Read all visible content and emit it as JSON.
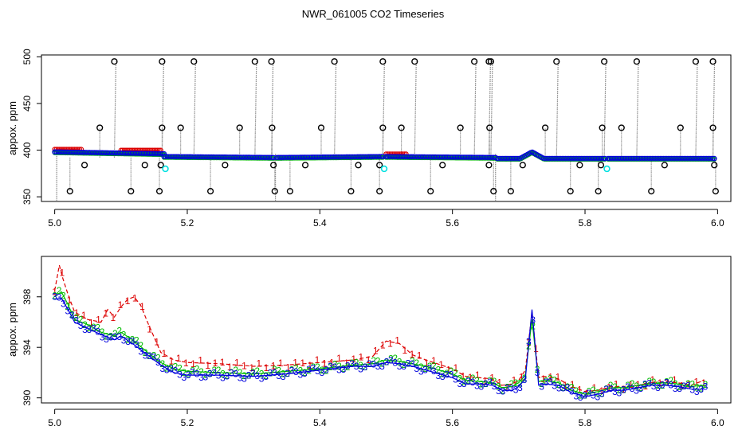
{
  "title": "NWR_061005  CO2 Timeseries",
  "colors": {
    "series1": "#dd0000",
    "series2": "#00bb00",
    "series3": "#0000dd",
    "spike": "#000000",
    "cyan": "#00e0e0",
    "drop": "#888888"
  },
  "chart_data": [
    {
      "type": "scatter",
      "title": "NWR_061005  CO2 Timeseries",
      "xlabel": "",
      "ylabel": "appox. ppm",
      "xlim": [
        4.98,
        6.02
      ],
      "ylim": [
        345,
        502
      ],
      "xticks": [
        "5.0",
        "5.2",
        "5.4",
        "5.6",
        "5.8",
        "6.0"
      ],
      "yticks": [
        "350",
        "400",
        "450",
        "500"
      ],
      "segments": [
        {
          "x0": 5.0,
          "x1": 5.165,
          "y0": 398,
          "y1": 396
        },
        {
          "x0": 5.165,
          "x1": 5.33,
          "y0": 393,
          "y1": 392
        },
        {
          "x0": 5.335,
          "x1": 5.495,
          "y0": 392,
          "y1": 393
        },
        {
          "x0": 5.5,
          "x1": 5.665,
          "y0": 393,
          "y1": 392
        },
        {
          "x0": 5.668,
          "x1": 5.83,
          "y0": 391,
          "y1": 391
        },
        {
          "x0": 5.835,
          "x1": 5.995,
          "y0": 391,
          "y1": 391
        }
      ],
      "red_overlay": [
        {
          "x0": 5.0,
          "x1": 5.04,
          "y": 400
        },
        {
          "x0": 5.1,
          "x1": 5.16,
          "y": 399
        },
        {
          "x0": 5.5,
          "x1": 5.53,
          "y": 395
        }
      ],
      "bump": {
        "x": 5.72,
        "y": 398
      },
      "spikes_high": [
        5.09,
        5.162,
        5.21,
        5.302,
        5.327,
        5.422,
        5.495,
        5.543,
        5.633,
        5.655,
        5.658,
        5.757,
        5.829,
        5.878,
        5.967,
        5.993
      ],
      "points_424": [
        5.068,
        5.162,
        5.19,
        5.279,
        5.328,
        5.402,
        5.495,
        5.523,
        5.612,
        5.656,
        5.74,
        5.826,
        5.855,
        5.944,
        5.993
      ],
      "points_384": [
        5.045,
        5.136,
        5.16,
        5.257,
        5.33,
        5.378,
        5.458,
        5.49,
        5.585,
        5.655,
        5.706,
        5.792,
        5.824,
        5.92,
        5.995
      ],
      "points_356": [
        5.023,
        5.115,
        5.158,
        5.235,
        5.332,
        5.355,
        5.447,
        5.49,
        5.567,
        5.662,
        5.688,
        5.778,
        5.82,
        5.9,
        5.997
      ],
      "cyan_points": [
        {
          "x": 5.167,
          "y": 380
        },
        {
          "x": 5.497,
          "y": 380
        },
        {
          "x": 5.833,
          "y": 380
        }
      ],
      "drops_low": [
        5.003,
        5.333,
        5.665
      ]
    },
    {
      "type": "line",
      "title": "",
      "xlabel": "",
      "ylabel": "appox. ppm",
      "xlim": [
        4.98,
        6.02
      ],
      "ylim": [
        389.6,
        401.2
      ],
      "xticks": [
        "5.0",
        "5.2",
        "5.4",
        "5.6",
        "5.8",
        "6.0"
      ],
      "yticks": [
        "390",
        "394",
        "398"
      ],
      "series": [
        {
          "name": "1",
          "x": [
            5.0,
            5.007,
            5.012,
            5.02,
            5.03,
            5.05,
            5.07,
            5.08,
            5.09,
            5.1,
            5.11,
            5.12,
            5.13,
            5.14,
            5.15,
            5.16,
            5.18,
            5.2,
            5.25,
            5.3,
            5.35,
            5.4,
            5.45,
            5.48,
            5.5,
            5.52,
            5.54,
            5.56,
            5.6,
            5.62,
            5.64,
            5.66,
            5.675,
            5.69,
            5.7,
            5.71,
            5.72,
            5.73,
            5.74,
            5.76,
            5.78,
            5.8,
            5.82,
            5.84,
            5.86,
            5.88,
            5.9,
            5.92,
            5.94,
            5.96,
            5.98
          ],
          "y": [
            398.5,
            400.5,
            399.5,
            398.2,
            396.8,
            396.2,
            396.0,
            397.0,
            396.4,
            397.2,
            397.8,
            398.0,
            397.3,
            396.0,
            394.8,
            393.6,
            393.0,
            392.8,
            392.7,
            392.5,
            392.6,
            392.8,
            393.0,
            393.3,
            394.5,
            394.3,
            393.4,
            393.0,
            392.3,
            391.7,
            391.6,
            391.5,
            391.0,
            391.1,
            391.4,
            392.2,
            396.8,
            391.6,
            391.7,
            391.5,
            390.9,
            390.5,
            390.6,
            390.9,
            390.9,
            391.0,
            391.2,
            391.3,
            391.2,
            391.0,
            391.4
          ]
        },
        {
          "name": "2",
          "x": [
            5.0,
            5.01,
            5.02,
            5.03,
            5.05,
            5.07,
            5.09,
            5.1,
            5.12,
            5.14,
            5.16,
            5.18,
            5.2,
            5.25,
            5.3,
            5.35,
            5.4,
            5.45,
            5.48,
            5.5,
            5.52,
            5.54,
            5.56,
            5.6,
            5.62,
            5.64,
            5.66,
            5.675,
            5.69,
            5.7,
            5.71,
            5.72,
            5.73,
            5.74,
            5.76,
            5.78,
            5.8,
            5.82,
            5.84,
            5.86,
            5.88,
            5.9,
            5.92,
            5.94,
            5.96,
            5.98
          ],
          "y": [
            398.0,
            398.4,
            397.4,
            396.2,
            395.8,
            395.2,
            394.9,
            395.2,
            394.5,
            393.6,
            392.8,
            392.3,
            392.1,
            392.0,
            391.9,
            392.1,
            392.3,
            392.6,
            392.7,
            393.0,
            392.9,
            392.7,
            392.5,
            391.9,
            391.4,
            391.3,
            391.2,
            390.8,
            390.9,
            391.2,
            391.8,
            396.2,
            391.3,
            391.4,
            391.2,
            390.6,
            390.3,
            390.5,
            390.8,
            390.8,
            391.0,
            391.1,
            391.2,
            391.1,
            390.9,
            391.0
          ]
        },
        {
          "name": "3",
          "x": [
            5.0,
            5.01,
            5.02,
            5.03,
            5.05,
            5.07,
            5.09,
            5.1,
            5.12,
            5.14,
            5.16,
            5.18,
            5.2,
            5.25,
            5.3,
            5.35,
            5.4,
            5.45,
            5.48,
            5.5,
            5.52,
            5.54,
            5.56,
            5.6,
            5.62,
            5.64,
            5.66,
            5.675,
            5.69,
            5.7,
            5.71,
            5.72,
            5.73,
            5.74,
            5.76,
            5.78,
            5.8,
            5.82,
            5.84,
            5.86,
            5.88,
            5.9,
            5.92,
            5.94,
            5.96,
            5.98
          ],
          "y": [
            397.8,
            397.9,
            397.0,
            396.0,
            395.5,
            395.0,
            394.6,
            394.9,
            394.2,
            393.4,
            392.6,
            392.0,
            391.8,
            391.8,
            391.7,
            391.9,
            392.2,
            392.5,
            392.5,
            392.8,
            392.7,
            392.5,
            392.2,
            391.6,
            391.1,
            391.1,
            391.0,
            390.6,
            390.6,
            390.9,
            391.5,
            397.0,
            391.0,
            391.1,
            391.0,
            390.4,
            390.1,
            390.3,
            390.6,
            390.6,
            390.8,
            391.0,
            391.0,
            390.9,
            390.7,
            390.7
          ]
        }
      ]
    }
  ]
}
